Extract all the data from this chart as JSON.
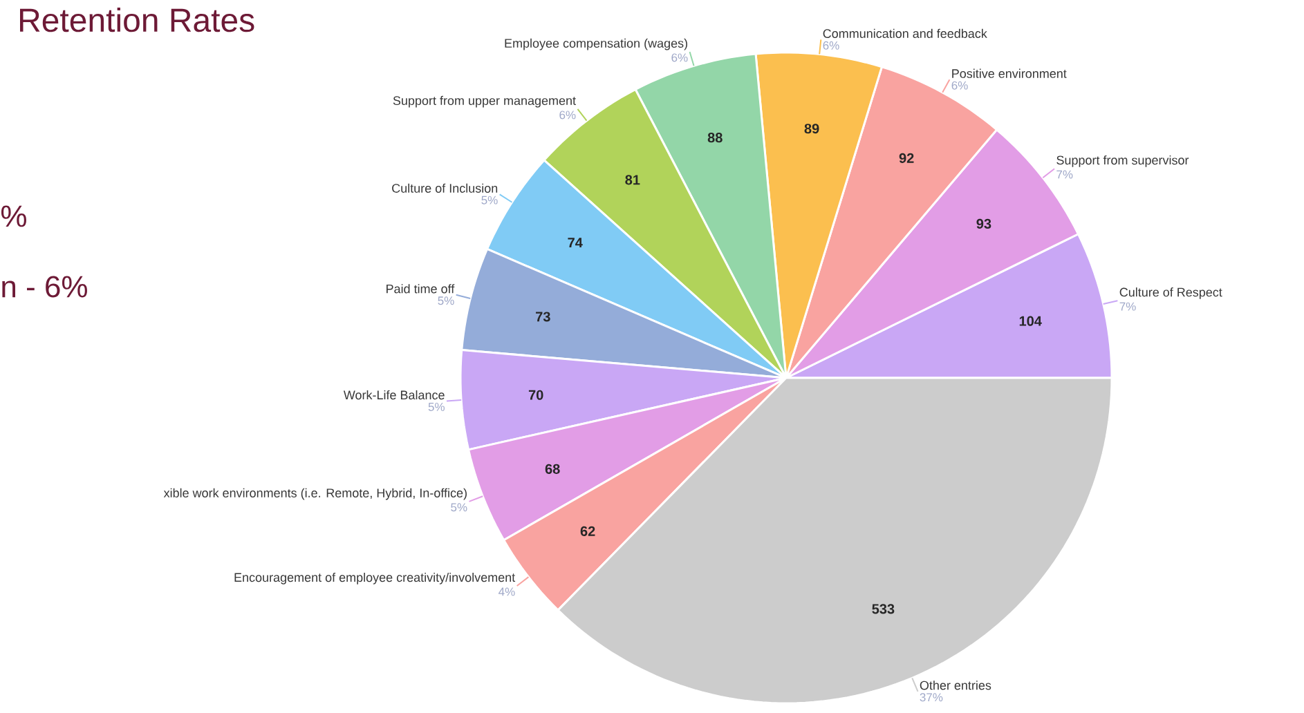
{
  "chart_data": {
    "type": "pie",
    "title": "Retention Rates",
    "categories": [
      "Culture of Respect",
      "Support from supervisor",
      "Positive environment",
      "Communication and feedback",
      "Employee compensation (wages)",
      "Support from upper management",
      "Culture of Inclusion",
      "Paid time off",
      "Work-Life Balance",
      "xible work environments (i.e. Remote, Hybrid, In-office)",
      "Encouragement of employee creativity/involvement",
      "Other entries"
    ],
    "values": [
      104,
      93,
      92,
      89,
      88,
      81,
      74,
      73,
      70,
      68,
      62,
      533
    ],
    "colors": [
      "#c9a7f5",
      "#e29de6",
      "#f9a3a0",
      "#fbbf4f",
      "#93d6a8",
      "#b1d35a",
      "#80cbf5",
      "#94acd9",
      "#c9a7f5",
      "#e29de6",
      "#f9a3a0",
      "#cccccc"
    ],
    "data_labels": true,
    "annotations": [
      "7%",
      "7%",
      "6%",
      "6%",
      "6%",
      "6%",
      "5%",
      "5%",
      "5%",
      "5%",
      "4%",
      "37%",
      "%",
      "n - 6%"
    ]
  }
}
